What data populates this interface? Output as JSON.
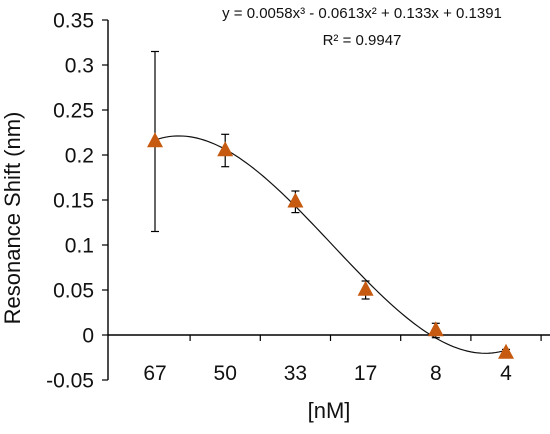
{
  "chart_data": {
    "type": "scatter",
    "title": "",
    "xlabel": "[nM]",
    "ylabel": "Resonance Shift (nm)",
    "categories": [
      "67",
      "50",
      "33",
      "17",
      "8",
      "4"
    ],
    "ylim": [
      -0.05,
      0.35
    ],
    "y_ticks": [
      "0.35",
      "0.3",
      "0.25",
      "0.2",
      "0.15",
      "0.1",
      "0.05",
      "0",
      "-0.05"
    ],
    "grid": false,
    "legend": "none",
    "series": [
      {
        "marker": "triangle",
        "color": "#c65a10",
        "x": [
          1,
          2,
          3,
          4,
          5,
          6
        ],
        "values": [
          0.215,
          0.205,
          0.148,
          0.05,
          0.005,
          -0.02
        ],
        "error": [
          0.1,
          0.018,
          0.012,
          0.01,
          0.008,
          0.004
        ]
      }
    ],
    "trendline": {
      "type": "polynomial",
      "order": 3,
      "coefficients": [
        0.0058,
        -0.0613,
        0.133,
        0.1391
      ],
      "equation": "y = 0.0058x³ - 0.0613x² + 0.133x + 0.1391",
      "r_squared": "R² = 0.9947",
      "color": "#111111"
    }
  }
}
